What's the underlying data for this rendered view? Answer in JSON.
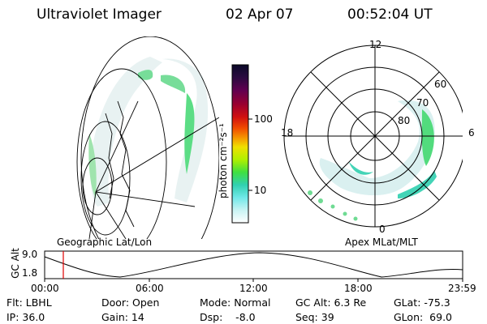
{
  "header": {
    "instrument": "Ultraviolet Imager",
    "date": "02 Apr 07",
    "time": "00:52:04 UT"
  },
  "geo_panel": {
    "label": "Geographic Lat/Lon"
  },
  "polar_panel": {
    "label": "Apex MLat/MLT",
    "mlt_labels": [
      "12",
      "18",
      "6",
      "0"
    ],
    "lat_labels": [
      "60",
      "70",
      "80"
    ]
  },
  "colorbar": {
    "unit_label": "photon cm⁻²s⁻¹",
    "ticks": [
      "100",
      "10"
    ],
    "colors": [
      "#0a0a28",
      "#2a0a40",
      "#600050",
      "#9a0030",
      "#d01010",
      "#f04a00",
      "#f5a000",
      "#f0e000",
      "#b0f000",
      "#40e040",
      "#30d0b0",
      "#70e8e8",
      "#c8f4f4",
      "#ffffff"
    ]
  },
  "altitude_plot": {
    "ylabel": "GC Alt",
    "yticks": [
      "9.0",
      "1.8"
    ],
    "xticks": [
      "00:00",
      "06:00",
      "12:00",
      "18:00",
      "23:59"
    ],
    "marker_color": "#e00000"
  },
  "info": {
    "filter": "Flt: LBHL",
    "door": "Door: Open",
    "mode": "Mode: Normal",
    "gc_alt": "GC Alt: 6.3 Re",
    "glat": "GLat: -75.3",
    "ip": "IP: 36.0",
    "gain": "Gain: 14",
    "dsp": "Dsp:    -8.0",
    "seq": "Seq: 39",
    "glon": "GLon:  69.0"
  }
}
